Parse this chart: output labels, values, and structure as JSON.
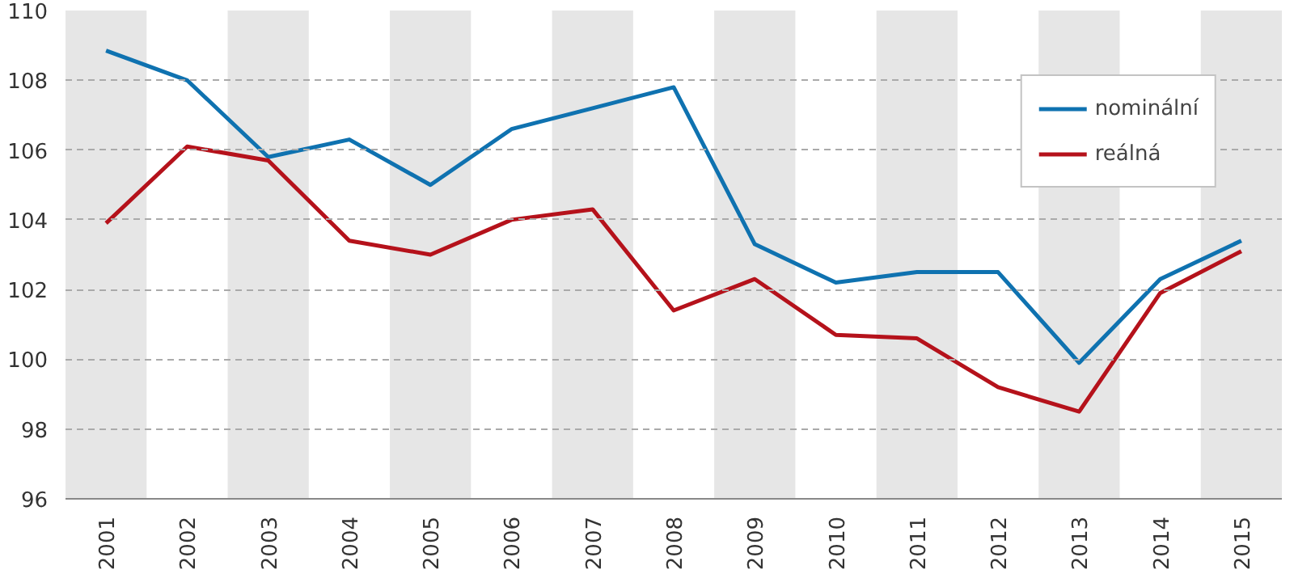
{
  "chart_data": {
    "type": "line",
    "x": [
      2001,
      2002,
      2003,
      2004,
      2005,
      2006,
      2007,
      2008,
      2009,
      2010,
      2011,
      2012,
      2013,
      2014,
      2015
    ],
    "series": [
      {
        "name": "nominální",
        "color": "#0f72b0",
        "values": [
          108.85,
          108.0,
          105.8,
          106.3,
          105.0,
          106.6,
          107.2,
          107.8,
          103.3,
          102.2,
          102.5,
          102.5,
          99.9,
          102.3,
          103.4
        ]
      },
      {
        "name": "reálná",
        "color": "#b5121b",
        "values": [
          103.9,
          106.1,
          105.7,
          103.4,
          103.0,
          104.0,
          104.3,
          101.4,
          102.3,
          100.7,
          100.6,
          99.2,
          98.5,
          101.9,
          103.1
        ]
      }
    ],
    "xlim": [
      2000.5,
      2015.5
    ],
    "xticks": [
      2001,
      2002,
      2003,
      2004,
      2005,
      2006,
      2007,
      2008,
      2009,
      2010,
      2011,
      2012,
      2013,
      2014,
      2015
    ],
    "ylim": [
      96,
      110
    ],
    "yticks": [
      96,
      98,
      100,
      102,
      104,
      106,
      108,
      110
    ],
    "bands": [
      {
        "axis": "x",
        "from": 2000.5,
        "to": 2001.5,
        "color": "#e6e6e6"
      },
      {
        "axis": "x",
        "from": 2002.5,
        "to": 2003.5,
        "color": "#e6e6e6"
      },
      {
        "axis": "x",
        "from": 2004.5,
        "to": 2005.5,
        "color": "#e6e6e6"
      },
      {
        "axis": "x",
        "from": 2006.5,
        "to": 2007.5,
        "color": "#e6e6e6"
      },
      {
        "axis": "x",
        "from": 2008.5,
        "to": 2009.5,
        "color": "#e6e6e6"
      },
      {
        "axis": "x",
        "from": 2010.5,
        "to": 2011.5,
        "color": "#e6e6e6"
      },
      {
        "axis": "x",
        "from": 2012.5,
        "to": 2013.5,
        "color": "#e6e6e6"
      },
      {
        "axis": "x",
        "from": 2014.5,
        "to": 2015.5,
        "color": "#e6e6e6"
      }
    ],
    "grid": "y",
    "legend": "top right",
    "line_style": "solid"
  }
}
